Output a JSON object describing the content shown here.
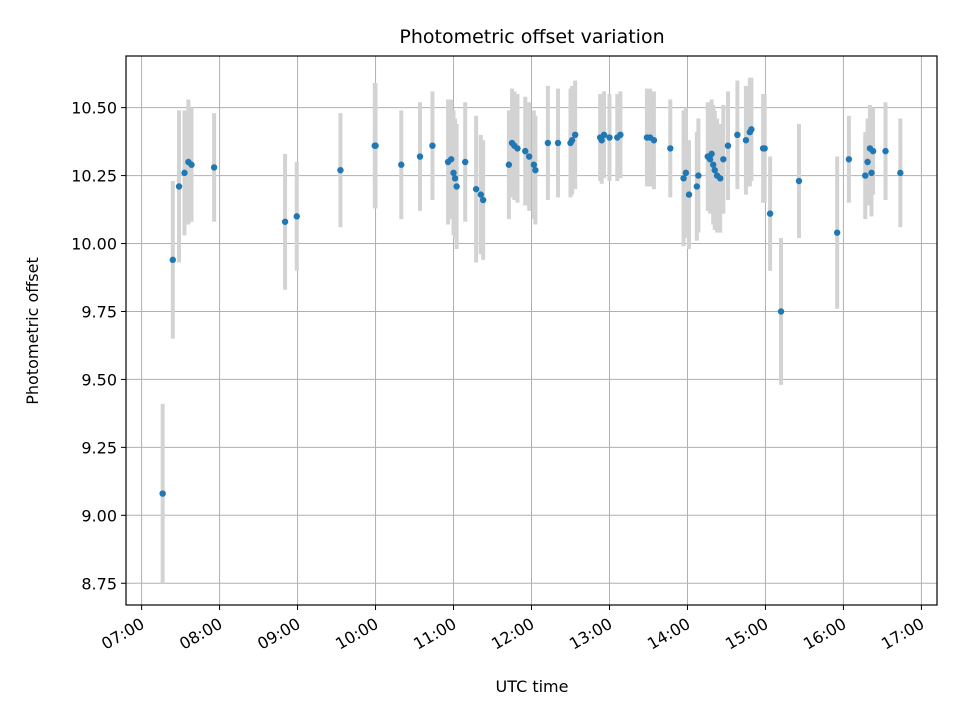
{
  "chart_data": {
    "type": "scatter",
    "title": "Photometric offset variation",
    "xlabel": "UTC time",
    "ylabel": "Photometric offset",
    "x_unit": "hours (UTC)",
    "xlim": [
      6.8,
      17.2
    ],
    "ylim": [
      8.67,
      10.69
    ],
    "x_ticks": [
      {
        "value": 7,
        "label": "07:00"
      },
      {
        "value": 8,
        "label": "08:00"
      },
      {
        "value": 9,
        "label": "09:00"
      },
      {
        "value": 10,
        "label": "10:00"
      },
      {
        "value": 11,
        "label": "11:00"
      },
      {
        "value": 12,
        "label": "12:00"
      },
      {
        "value": 13,
        "label": "13:00"
      },
      {
        "value": 14,
        "label": "14:00"
      },
      {
        "value": 15,
        "label": "15:00"
      },
      {
        "value": 16,
        "label": "16:00"
      },
      {
        "value": 17,
        "label": "17:00"
      }
    ],
    "y_ticks": [
      {
        "value": 8.75,
        "label": "8.75"
      },
      {
        "value": 9.0,
        "label": "9.00"
      },
      {
        "value": 9.25,
        "label": "9.25"
      },
      {
        "value": 9.5,
        "label": "9.50"
      },
      {
        "value": 9.75,
        "label": "9.75"
      },
      {
        "value": 10.0,
        "label": "10.00"
      },
      {
        "value": 10.25,
        "label": "10.25"
      },
      {
        "value": 10.5,
        "label": "10.50"
      }
    ],
    "grid": true,
    "point_color": "#1f77b4",
    "errorbar_color": "#d3d3d3",
    "points": [
      [
        7.27,
        9.08,
        0.33
      ],
      [
        7.4,
        9.94,
        0.29
      ],
      [
        7.48,
        10.21,
        0.28
      ],
      [
        7.55,
        10.26,
        0.23
      ],
      [
        7.6,
        10.3,
        0.23
      ],
      [
        7.64,
        10.29,
        0.21
      ],
      [
        7.93,
        10.28,
        0.2
      ],
      [
        8.84,
        10.08,
        0.25
      ],
      [
        8.99,
        10.1,
        0.2
      ],
      [
        9.55,
        10.27,
        0.21
      ],
      [
        9.99,
        10.36,
        0.23
      ],
      [
        10.0,
        10.36,
        0.23
      ],
      [
        10.33,
        10.29,
        0.2
      ],
      [
        10.57,
        10.32,
        0.2
      ],
      [
        10.73,
        10.36,
        0.2
      ],
      [
        10.93,
        10.3,
        0.23
      ],
      [
        10.97,
        10.31,
        0.22
      ],
      [
        11.0,
        10.26,
        0.23
      ],
      [
        11.02,
        10.24,
        0.22
      ],
      [
        11.04,
        10.21,
        0.23
      ],
      [
        11.15,
        10.3,
        0.22
      ],
      [
        11.29,
        10.2,
        0.27
      ],
      [
        11.35,
        10.18,
        0.22
      ],
      [
        11.38,
        10.16,
        0.22
      ],
      [
        11.71,
        10.29,
        0.2
      ],
      [
        11.75,
        10.37,
        0.2
      ],
      [
        11.78,
        10.36,
        0.2
      ],
      [
        11.82,
        10.35,
        0.2
      ],
      [
        11.92,
        10.34,
        0.2
      ],
      [
        11.97,
        10.32,
        0.2
      ],
      [
        12.03,
        10.29,
        0.2
      ],
      [
        12.05,
        10.27,
        0.2
      ],
      [
        12.21,
        10.37,
        0.21
      ],
      [
        12.34,
        10.37,
        0.2
      ],
      [
        12.5,
        10.37,
        0.2
      ],
      [
        12.52,
        10.38,
        0.2
      ],
      [
        12.56,
        10.4,
        0.2
      ],
      [
        12.88,
        10.39,
        0.16
      ],
      [
        12.9,
        10.38,
        0.16
      ],
      [
        12.93,
        10.4,
        0.16
      ],
      [
        13.0,
        10.39,
        0.16
      ],
      [
        13.1,
        10.39,
        0.16
      ],
      [
        13.14,
        10.4,
        0.16
      ],
      [
        13.48,
        10.39,
        0.18
      ],
      [
        13.52,
        10.39,
        0.18
      ],
      [
        13.57,
        10.38,
        0.18
      ],
      [
        13.78,
        10.35,
        0.18
      ],
      [
        13.95,
        10.24,
        0.25
      ],
      [
        13.98,
        10.26,
        0.24
      ],
      [
        14.02,
        10.18,
        0.2
      ],
      [
        14.12,
        10.21,
        0.2
      ],
      [
        14.14,
        10.25,
        0.21
      ],
      [
        14.26,
        10.32,
        0.2
      ],
      [
        14.29,
        10.31,
        0.2
      ],
      [
        14.31,
        10.33,
        0.2
      ],
      [
        14.33,
        10.29,
        0.22
      ],
      [
        14.35,
        10.27,
        0.22
      ],
      [
        14.38,
        10.25,
        0.21
      ],
      [
        14.42,
        10.24,
        0.2
      ],
      [
        14.46,
        10.31,
        0.2
      ],
      [
        14.52,
        10.36,
        0.2
      ],
      [
        14.64,
        10.4,
        0.2
      ],
      [
        14.75,
        10.38,
        0.2
      ],
      [
        14.8,
        10.41,
        0.2
      ],
      [
        14.82,
        10.42,
        0.19
      ],
      [
        14.97,
        10.35,
        0.2
      ],
      [
        14.99,
        10.35,
        0.2
      ],
      [
        15.06,
        10.11,
        0.21
      ],
      [
        15.2,
        9.75,
        0.27
      ],
      [
        15.43,
        10.23,
        0.21
      ],
      [
        15.92,
        10.04,
        0.28
      ],
      [
        16.07,
        10.31,
        0.16
      ],
      [
        16.28,
        10.25,
        0.16
      ],
      [
        16.31,
        10.3,
        0.16
      ],
      [
        16.34,
        10.35,
        0.16
      ],
      [
        16.36,
        10.26,
        0.16
      ],
      [
        16.38,
        10.34,
        0.16
      ],
      [
        16.54,
        10.34,
        0.18
      ],
      [
        16.73,
        10.26,
        0.2
      ]
    ]
  }
}
